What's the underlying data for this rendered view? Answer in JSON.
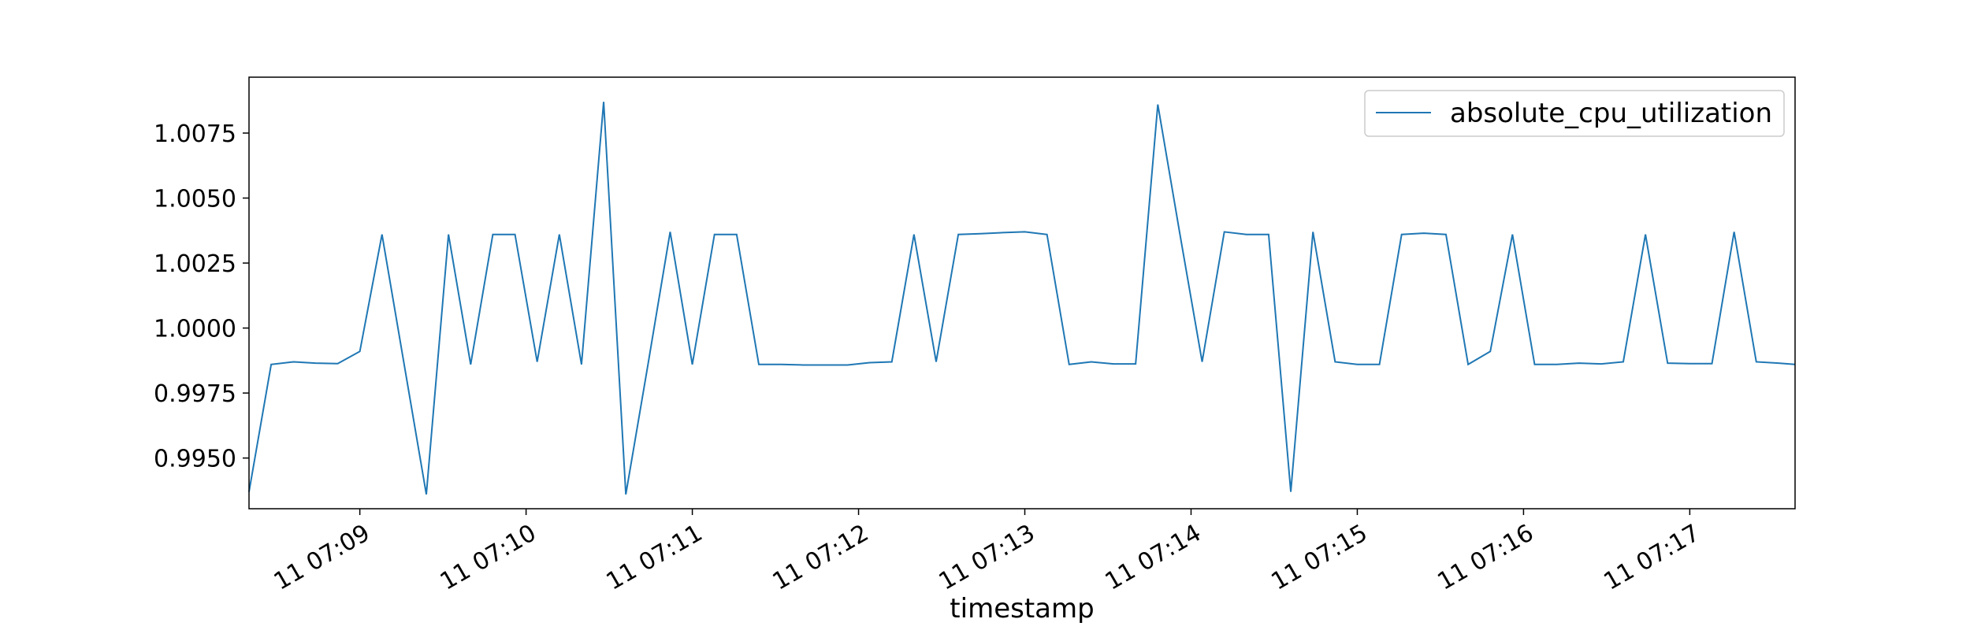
{
  "chart_data": {
    "type": "line",
    "title": "",
    "xlabel": "timestamp",
    "ylabel": "",
    "legend": {
      "position": "top-right",
      "entries": [
        "absolute_cpu_utilization"
      ]
    },
    "grid": false,
    "xlim": [
      "07:08:20",
      "07:17:38"
    ],
    "ylim": [
      0.99305,
      1.00965
    ],
    "x_ticks": [
      "11 07:09",
      "11 07:10",
      "11 07:11",
      "11 07:12",
      "11 07:13",
      "11 07:14",
      "11 07:15",
      "11 07:16",
      "11 07:17"
    ],
    "y_ticks": [
      "0.9950",
      "0.9975",
      "1.0000",
      "1.0025",
      "1.0050",
      "1.0075"
    ],
    "series": [
      {
        "name": "absolute_cpu_utilization",
        "color": "#1f77b4",
        "x": [
          "07:08:20",
          "07:08:28",
          "07:08:36",
          "07:08:44",
          "07:08:52",
          "07:09:00",
          "07:09:08",
          "07:09:16",
          "07:09:24",
          "07:09:32",
          "07:09:40",
          "07:09:48",
          "07:09:56",
          "07:10:04",
          "07:10:12",
          "07:10:20",
          "07:10:28",
          "07:10:36",
          "07:10:44",
          "07:10:52",
          "07:11:00",
          "07:11:08",
          "07:11:16",
          "07:11:24",
          "07:11:32",
          "07:11:40",
          "07:11:48",
          "07:11:56",
          "07:12:04",
          "07:12:12",
          "07:12:20",
          "07:12:28",
          "07:12:36",
          "07:12:44",
          "07:12:52",
          "07:13:00",
          "07:13:08",
          "07:13:16",
          "07:13:24",
          "07:13:32",
          "07:13:40",
          "07:13:48",
          "07:13:56",
          "07:14:04",
          "07:14:12",
          "07:14:20",
          "07:14:28",
          "07:14:36",
          "07:14:44",
          "07:14:52",
          "07:15:00",
          "07:15:08",
          "07:15:16",
          "07:15:24",
          "07:15:32",
          "07:15:40",
          "07:15:48",
          "07:15:56",
          "07:16:04",
          "07:16:12",
          "07:16:20",
          "07:16:28",
          "07:16:36",
          "07:16:44",
          "07:16:52",
          "07:17:00",
          "07:17:08",
          "07:17:16",
          "07:17:24",
          "07:17:32",
          "07:17:38"
        ],
        "values": [
          0.9937,
          0.9986,
          0.9987,
          0.99865,
          0.99863,
          0.9991,
          1.0036,
          0.9986,
          0.9936,
          1.0036,
          0.9986,
          1.0036,
          1.0036,
          0.9987,
          1.0036,
          0.9986,
          1.0087,
          0.9936,
          0.9986,
          1.0037,
          0.9986,
          1.0036,
          1.0036,
          0.9986,
          0.9986,
          0.99858,
          0.99858,
          0.99858,
          0.99867,
          0.9987,
          1.0036,
          0.9987,
          1.0036,
          1.00363,
          1.00367,
          1.0037,
          1.0036,
          0.9986,
          0.9987,
          0.99862,
          0.99862,
          1.0086,
          1.0036,
          0.9987,
          1.0037,
          1.0036,
          1.0036,
          0.9937,
          1.0037,
          0.9987,
          0.9986,
          0.9986,
          1.0036,
          1.00365,
          1.0036,
          0.9986,
          0.9991,
          1.0036,
          0.9986,
          0.9986,
          0.99865,
          0.99862,
          0.9987,
          1.0036,
          0.99865,
          0.99863,
          0.99863,
          1.0037,
          0.9987,
          0.99865,
          0.9986
        ]
      }
    ]
  }
}
